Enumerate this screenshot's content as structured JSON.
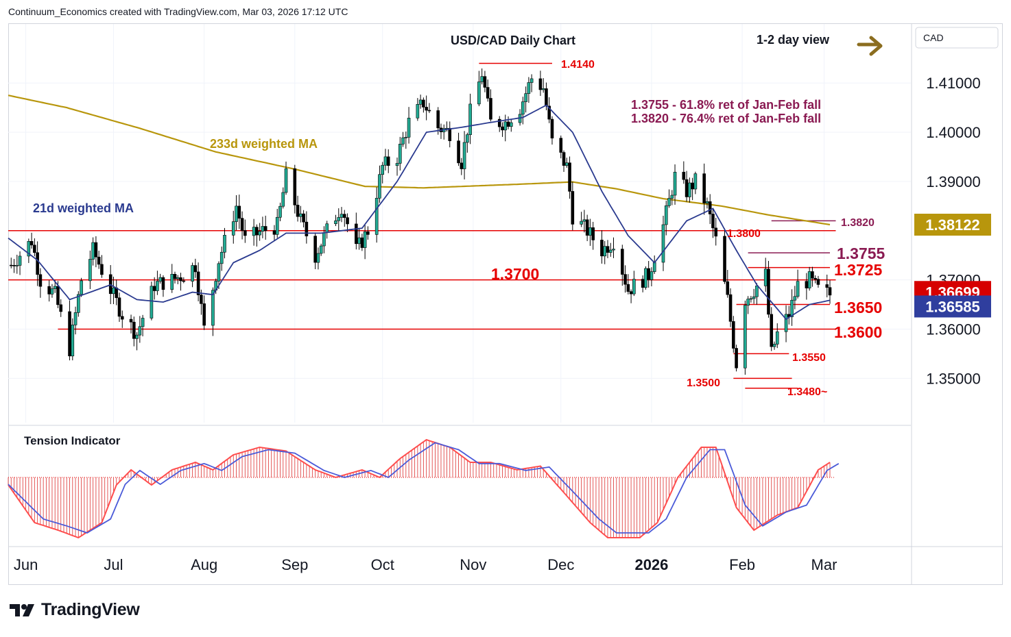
{
  "header": {
    "credit": "Continuum_Economics created with TradingView.com, Mar 03, 2026 17:12 UTC"
  },
  "footer": {
    "brand": "TradingView"
  },
  "colors": {
    "up": "#22ab94",
    "down": "#000000",
    "level": "#e60000",
    "ma21": "#2a3a8f",
    "ma233": "#b8960c",
    "fib": "#8a1a52",
    "arrow": "#8b6d1f",
    "grid": "#f0f3fa"
  },
  "icons": {
    "view_arrow": "right-arrow-icon",
    "logo": "tradingview-logo-icon"
  },
  "chart_data": {
    "type": "candlestick",
    "title": "USD/CAD Daily Chart",
    "view_label": "1-2 day view",
    "currency_label": "CAD",
    "grid": true,
    "yaxis_ticks": [
      "1.41000",
      "1.40000",
      "1.39000",
      "1.37000",
      "1.36000",
      "1.35000"
    ],
    "xaxis_ticks": [
      "Jun",
      "Jul",
      "Aug",
      "Sep",
      "Oct",
      "Nov",
      "Dec",
      "2026",
      "Feb",
      "Mar"
    ],
    "x_range": [
      "2025-05-26",
      "2026-03-03"
    ],
    "ylim": [
      1.341,
      1.422
    ],
    "last_price": {
      "label": "1.36699",
      "value": 1.36699
    },
    "ma21_price": {
      "label": "1.36585",
      "value": 1.36585
    },
    "ma233_price": {
      "label": "1.38122",
      "value": 1.38122
    },
    "ma_labels": {
      "ma21": "21d weighted MA",
      "ma233": "233d weighted MA"
    },
    "annotations": [
      "1.3755 - 61.8% ret of Jan-Feb fall",
      "1.3820 - 76.4% ret of Jan-Feb fall"
    ],
    "levels": [
      {
        "label": "1.4140",
        "value": 1.414,
        "from": "2025-11-03",
        "to": "2025-11-28",
        "size": "small"
      },
      {
        "label": "1.3820",
        "value": 1.382,
        "from": "2026-02-11",
        "to": "2026-03-05",
        "size": "small",
        "color": "fib"
      },
      {
        "label": "1.3800",
        "value": 1.38,
        "from": "2025-05-26",
        "to": "2026-03-05",
        "size": "small"
      },
      {
        "label": "1.3755",
        "value": 1.3755,
        "from": "2026-02-03",
        "to": "2026-03-03",
        "size": "large",
        "color": "fib"
      },
      {
        "label": "1.3725",
        "value": 1.3725,
        "from": "2026-02-03",
        "to": "2026-03-03",
        "size": "large"
      },
      {
        "label": "1.3700",
        "value": 1.37,
        "from": "2025-05-26",
        "to": "2026-03-05",
        "size": "large"
      },
      {
        "label": "1.3650",
        "value": 1.365,
        "from": "2026-01-30",
        "to": "2026-03-03",
        "size": "large"
      },
      {
        "label": "1.3600",
        "value": 1.36,
        "from": "2025-06-12",
        "to": "2026-03-05",
        "size": "large"
      },
      {
        "label": "1.3550",
        "value": 1.355,
        "from": "2026-01-29",
        "to": "2026-02-17",
        "size": "small"
      },
      {
        "label": "1.3500",
        "value": 1.35,
        "from": "2026-01-29",
        "to": "2026-02-18",
        "size": "small"
      },
      {
        "label": "1.3480~",
        "value": 1.348,
        "from": "2026-02-02",
        "to": "2026-02-20",
        "size": "small"
      }
    ],
    "anchors": [
      [
        "2025-05-27",
        1.373
      ],
      [
        "2025-06-03",
        1.378
      ],
      [
        "2025-06-06",
        1.37
      ],
      [
        "2025-06-11",
        1.367
      ],
      [
        "2025-06-16",
        1.356
      ],
      [
        "2025-06-20",
        1.37
      ],
      [
        "2025-06-24",
        1.376
      ],
      [
        "2025-06-30",
        1.368
      ],
      [
        "2025-07-04",
        1.363
      ],
      [
        "2025-07-09",
        1.359
      ],
      [
        "2025-07-15",
        1.369
      ],
      [
        "2025-07-21",
        1.37
      ],
      [
        "2025-07-25",
        1.371
      ],
      [
        "2025-07-29",
        1.373
      ],
      [
        "2025-08-01",
        1.36
      ],
      [
        "2025-08-06",
        1.374
      ],
      [
        "2025-08-12",
        1.385
      ],
      [
        "2025-08-15",
        1.378
      ],
      [
        "2025-08-21",
        1.38
      ],
      [
        "2025-08-26",
        1.381
      ],
      [
        "2025-08-29",
        1.391
      ],
      [
        "2025-09-03",
        1.382
      ],
      [
        "2025-09-08",
        1.375
      ],
      [
        "2025-09-12",
        1.38
      ],
      [
        "2025-09-17",
        1.385
      ],
      [
        "2025-09-22",
        1.376
      ],
      [
        "2025-09-26",
        1.38
      ],
      [
        "2025-10-01",
        1.393
      ],
      [
        "2025-10-06",
        1.395
      ],
      [
        "2025-10-10",
        1.402
      ],
      [
        "2025-10-15",
        1.406
      ],
      [
        "2025-10-20",
        1.401
      ],
      [
        "2025-10-24",
        1.4
      ],
      [
        "2025-10-28",
        1.394
      ],
      [
        "2025-10-31",
        1.404
      ],
      [
        "2025-11-04",
        1.412
      ],
      [
        "2025-11-07",
        1.402
      ],
      [
        "2025-11-12",
        1.402
      ],
      [
        "2025-11-17",
        1.405
      ],
      [
        "2025-11-21",
        1.411
      ],
      [
        "2025-11-25",
        1.409
      ],
      [
        "2025-11-28",
        1.398
      ],
      [
        "2025-12-03",
        1.393
      ],
      [
        "2025-12-05",
        1.383
      ],
      [
        "2025-12-10",
        1.38
      ],
      [
        "2025-12-15",
        1.376
      ],
      [
        "2025-12-19",
        1.378
      ],
      [
        "2025-12-24",
        1.368
      ],
      [
        "2025-12-31",
        1.371
      ],
      [
        "2026-01-05",
        1.381
      ],
      [
        "2026-01-09",
        1.391
      ],
      [
        "2026-01-13",
        1.388
      ],
      [
        "2026-01-16",
        1.39
      ],
      [
        "2026-01-20",
        1.385
      ],
      [
        "2026-01-23",
        1.378
      ],
      [
        "2026-01-27",
        1.366
      ],
      [
        "2026-01-30",
        1.353
      ],
      [
        "2026-02-02",
        1.366
      ],
      [
        "2026-02-05",
        1.368
      ],
      [
        "2026-02-09",
        1.371
      ],
      [
        "2026-02-11",
        1.355
      ],
      [
        "2026-02-13",
        1.359
      ],
      [
        "2026-02-17",
        1.363
      ],
      [
        "2026-02-20",
        1.369
      ],
      [
        "2026-02-24",
        1.37
      ],
      [
        "2026-02-27",
        1.368
      ],
      [
        "2026-03-03",
        1.367
      ]
    ],
    "ma21_anchors": [
      [
        "2025-05-26",
        1.3785
      ],
      [
        "2025-06-05",
        1.374
      ],
      [
        "2025-06-16",
        1.366
      ],
      [
        "2025-06-30",
        1.369
      ],
      [
        "2025-07-09",
        1.366
      ],
      [
        "2025-07-18",
        1.3655
      ],
      [
        "2025-07-28",
        1.3675
      ],
      [
        "2025-08-04",
        1.367
      ],
      [
        "2025-08-11",
        1.3735
      ],
      [
        "2025-08-20",
        1.376
      ],
      [
        "2025-08-29",
        1.3795
      ],
      [
        "2025-09-10",
        1.3795
      ],
      [
        "2025-09-24",
        1.3805
      ],
      [
        "2025-10-06",
        1.39
      ],
      [
        "2025-10-16",
        1.4
      ],
      [
        "2025-10-28",
        1.401
      ],
      [
        "2025-11-07",
        1.402
      ],
      [
        "2025-11-18",
        1.403
      ],
      [
        "2025-11-26",
        1.4055
      ],
      [
        "2025-12-05",
        1.4
      ],
      [
        "2025-12-15",
        1.388
      ],
      [
        "2025-12-24",
        1.379
      ],
      [
        "2026-01-02",
        1.3735
      ],
      [
        "2026-01-13",
        1.382
      ],
      [
        "2026-01-22",
        1.3845
      ],
      [
        "2026-01-30",
        1.376
      ],
      [
        "2026-02-06",
        1.369
      ],
      [
        "2026-02-16",
        1.362
      ],
      [
        "2026-02-24",
        1.365
      ],
      [
        "2026-03-03",
        1.36585
      ]
    ],
    "ma233_anchors": [
      [
        "2025-05-26",
        1.4075
      ],
      [
        "2025-06-15",
        1.405
      ],
      [
        "2025-07-10",
        1.4008
      ],
      [
        "2025-08-05",
        1.396
      ],
      [
        "2025-09-01",
        1.3925
      ],
      [
        "2025-09-25",
        1.389
      ],
      [
        "2025-10-15",
        1.3887
      ],
      [
        "2025-11-15",
        1.3894
      ],
      [
        "2025-12-05",
        1.3899
      ],
      [
        "2025-12-20",
        1.3885
      ],
      [
        "2026-01-05",
        1.3865
      ],
      [
        "2026-01-25",
        1.385
      ],
      [
        "2026-02-10",
        1.3832
      ],
      [
        "2026-03-03",
        1.38122
      ]
    ],
    "tension_indicator": {
      "label": "Tension Indicator",
      "anchors": [
        [
          "2025-05-26",
          -1
        ],
        [
          "2025-06-04",
          -6
        ],
        [
          "2025-06-12",
          -7
        ],
        [
          "2025-06-19",
          -8
        ],
        [
          "2025-06-27",
          -6
        ],
        [
          "2025-07-02",
          -1
        ],
        [
          "2025-07-07",
          1
        ],
        [
          "2025-07-14",
          -1
        ],
        [
          "2025-07-21",
          1
        ],
        [
          "2025-07-29",
          2
        ],
        [
          "2025-08-04",
          1
        ],
        [
          "2025-08-11",
          3
        ],
        [
          "2025-08-20",
          4
        ],
        [
          "2025-08-29",
          3.5
        ],
        [
          "2025-09-08",
          1
        ],
        [
          "2025-09-15",
          0
        ],
        [
          "2025-09-24",
          1
        ],
        [
          "2025-09-30",
          0
        ],
        [
          "2025-10-07",
          2.5
        ],
        [
          "2025-10-16",
          5
        ],
        [
          "2025-10-24",
          4
        ],
        [
          "2025-10-31",
          2
        ],
        [
          "2025-11-07",
          2
        ],
        [
          "2025-11-16",
          1
        ],
        [
          "2025-11-24",
          1.5
        ],
        [
          "2025-12-02",
          -2
        ],
        [
          "2025-12-11",
          -6
        ],
        [
          "2025-12-17",
          -8
        ],
        [
          "2025-12-28",
          -8
        ],
        [
          "2026-01-03",
          -6
        ],
        [
          "2026-01-10",
          0
        ],
        [
          "2026-01-18",
          4
        ],
        [
          "2026-01-23",
          4
        ],
        [
          "2026-01-30",
          -4
        ],
        [
          "2026-02-05",
          -7
        ],
        [
          "2026-02-13",
          -5
        ],
        [
          "2026-02-20",
          -4
        ],
        [
          "2026-02-27",
          1
        ],
        [
          "2026-03-03",
          2
        ]
      ]
    }
  }
}
